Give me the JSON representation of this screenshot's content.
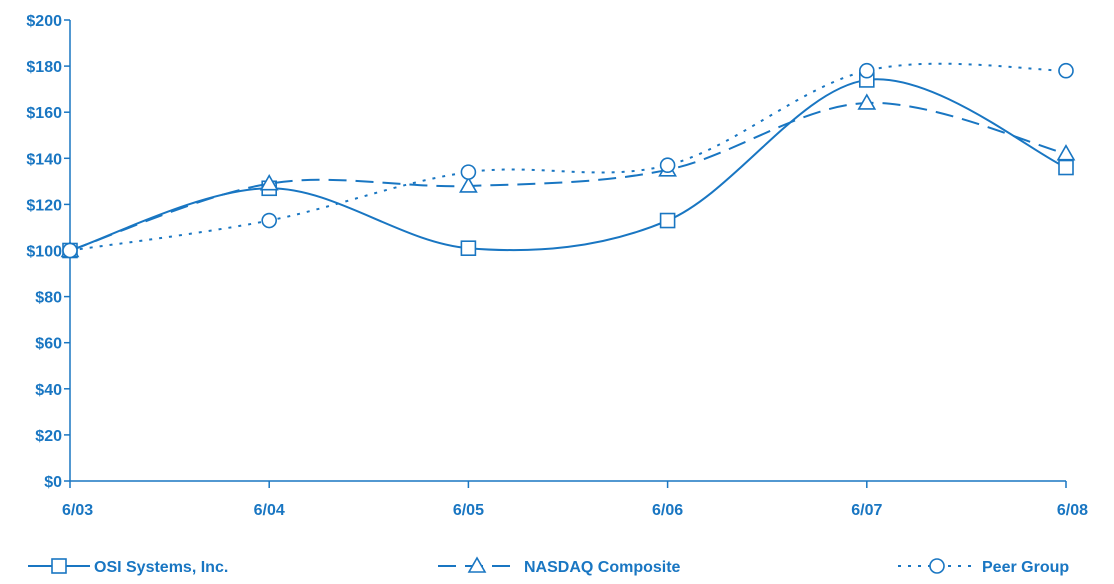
{
  "chart_data": {
    "type": "line",
    "categories": [
      "6/03",
      "6/04",
      "6/05",
      "6/06",
      "6/07",
      "6/08"
    ],
    "y_tick_labels": [
      "$0",
      "$20",
      "$40",
      "$60",
      "$80",
      "$100",
      "$120",
      "$140",
      "$160",
      "$180",
      "$200"
    ],
    "ylim": [
      0,
      200
    ],
    "y_tick_step": 20,
    "grid": false,
    "legend_position": "bottom",
    "color": "#1976c2",
    "series": [
      {
        "name": "OSI Systems, Inc.",
        "marker": "square",
        "line_style": "solid",
        "values": [
          100,
          127,
          101,
          113,
          174,
          136
        ]
      },
      {
        "name": "NASDAQ Composite",
        "marker": "triangle",
        "line_style": "dashed",
        "values": [
          100,
          129,
          128,
          135,
          164,
          142
        ]
      },
      {
        "name": "Peer Group",
        "marker": "circle",
        "line_style": "dotted",
        "values": [
          100,
          113,
          134,
          137,
          178,
          178
        ]
      }
    ]
  }
}
